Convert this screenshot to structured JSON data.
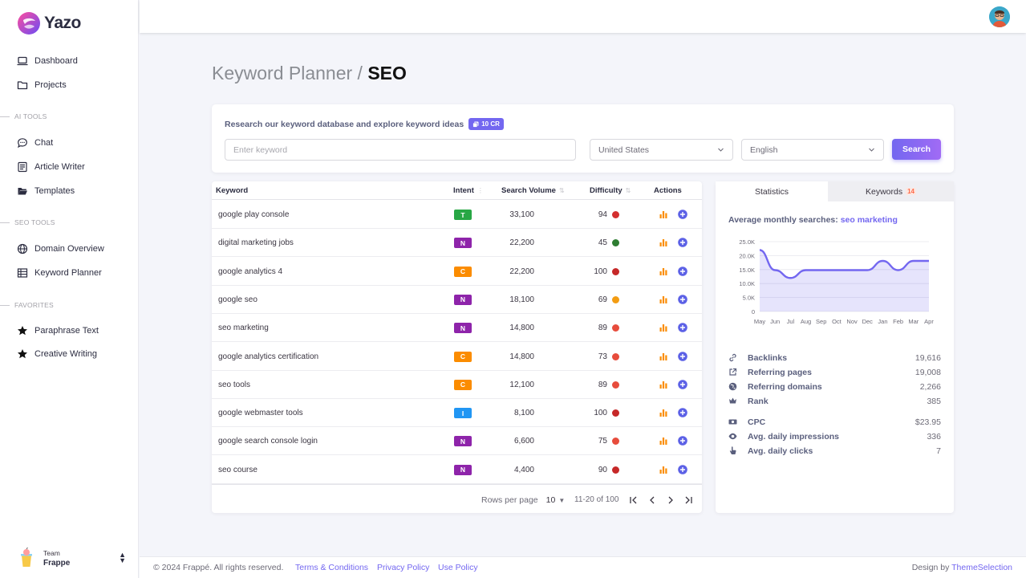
{
  "app": {
    "name": "Yazo"
  },
  "sidebar": {
    "main": [
      {
        "label": "Dashboard",
        "icon": "laptop-icon"
      },
      {
        "label": "Projects",
        "icon": "folder-icon"
      }
    ],
    "sections": [
      {
        "title": "AI TOOLS",
        "items": [
          {
            "label": "Chat",
            "icon": "chat-icon"
          },
          {
            "label": "Article Writer",
            "icon": "article-icon"
          },
          {
            "label": "Templates",
            "icon": "folder-open-icon"
          }
        ]
      },
      {
        "title": "SEO TOOLS",
        "items": [
          {
            "label": "Domain Overview",
            "icon": "globe-icon"
          },
          {
            "label": "Keyword Planner",
            "icon": "table-icon"
          }
        ]
      },
      {
        "title": "FAVORITES",
        "items": [
          {
            "label": "Paraphrase Text",
            "icon": "star-icon"
          },
          {
            "label": "Creative Writing",
            "icon": "star-icon"
          }
        ]
      }
    ],
    "team": {
      "label": "Team",
      "name": "Frappe"
    }
  },
  "page": {
    "breadcrumb": "Keyword Planner",
    "separator": "/",
    "title": "SEO"
  },
  "search": {
    "heading": "Research our keyword database and explore keyword ideas",
    "credits": "10 CR",
    "keyword_placeholder": "Enter keyword",
    "country": "United States",
    "language": "English",
    "button": "Search"
  },
  "table": {
    "headers": {
      "keyword": "Keyword",
      "intent": "Intent",
      "volume": "Search Volume",
      "difficulty": "Difficulty",
      "actions": "Actions"
    },
    "rows": [
      {
        "keyword": "google play console",
        "intent": "T",
        "volume": "33,100",
        "difficulty": "94",
        "dot": "#d32f2f"
      },
      {
        "keyword": "digital marketing jobs",
        "intent": "N",
        "volume": "22,200",
        "difficulty": "45",
        "dot": "#2e7d32"
      },
      {
        "keyword": "google analytics 4",
        "intent": "C",
        "volume": "22,200",
        "difficulty": "100",
        "dot": "#c62828"
      },
      {
        "keyword": "google seo",
        "intent": "N",
        "volume": "18,100",
        "difficulty": "69",
        "dot": "#f39c12"
      },
      {
        "keyword": "seo marketing",
        "intent": "N",
        "volume": "14,800",
        "difficulty": "89",
        "dot": "#e74c3c"
      },
      {
        "keyword": "google analytics certification",
        "intent": "C",
        "volume": "14,800",
        "difficulty": "73",
        "dot": "#e74c3c"
      },
      {
        "keyword": "seo tools",
        "intent": "C",
        "volume": "12,100",
        "difficulty": "89",
        "dot": "#e74c3c"
      },
      {
        "keyword": "google webmaster tools",
        "intent": "I",
        "volume": "8,100",
        "difficulty": "100",
        "dot": "#c62828"
      },
      {
        "keyword": "google search console login",
        "intent": "N",
        "volume": "6,600",
        "difficulty": "75",
        "dot": "#e74c3c"
      },
      {
        "keyword": "seo course",
        "intent": "N",
        "volume": "4,400",
        "difficulty": "90",
        "dot": "#c62828"
      }
    ],
    "intent_colors": {
      "T": "#28a745",
      "N": "#8e24aa",
      "C": "#fb8c00",
      "I": "#2196f3"
    },
    "pagination": {
      "rows_label": "Rows per page",
      "rows_value": "10",
      "range": "11-20 of 100"
    }
  },
  "stats": {
    "tabs": [
      {
        "label": "Statistics"
      },
      {
        "label": "Keywords",
        "count": "14"
      }
    ],
    "heading_prefix": "Average monthly searches:",
    "heading_keyword": "seo marketing",
    "chart_data": {
      "type": "area",
      "categories": [
        "May",
        "Jun",
        "Jul",
        "Aug",
        "Sep",
        "Oct",
        "Nov",
        "Dec",
        "Jan",
        "Feb",
        "Mar",
        "Apr"
      ],
      "values": [
        22000,
        14800,
        12000,
        14800,
        14800,
        14800,
        14800,
        14800,
        18100,
        14800,
        18100,
        18100
      ],
      "yticks": [
        "25.0K",
        "20.0K",
        "15.0K",
        "10.0K",
        "5.0K",
        "0"
      ],
      "ylim": [
        0,
        25000
      ],
      "grid": true
    },
    "metrics": [
      {
        "label": "Backlinks",
        "value": "19,616",
        "icon": "link-icon"
      },
      {
        "label": "Referring pages",
        "value": "19,008",
        "icon": "external-link-icon"
      },
      {
        "label": "Referring domains",
        "value": "2,266",
        "icon": "globe-icon"
      },
      {
        "label": "Rank",
        "value": "385",
        "icon": "crown-icon"
      },
      {
        "label": "CPC",
        "value": "$23.95",
        "icon": "cash-icon"
      },
      {
        "label": "Avg. daily impressions",
        "value": "336",
        "icon": "eye-icon"
      },
      {
        "label": "Avg. daily clicks",
        "value": "7",
        "icon": "pointer-icon"
      }
    ]
  },
  "footer": {
    "copyright": "© 2024 Frappé. All rights reserved.",
    "links": [
      "Terms & Conditions",
      "Privacy Policy",
      "Use Policy"
    ],
    "credit_prefix": "Design by",
    "credit_name": "ThemeSelection"
  },
  "colors": {
    "primary": "#7367f0"
  }
}
